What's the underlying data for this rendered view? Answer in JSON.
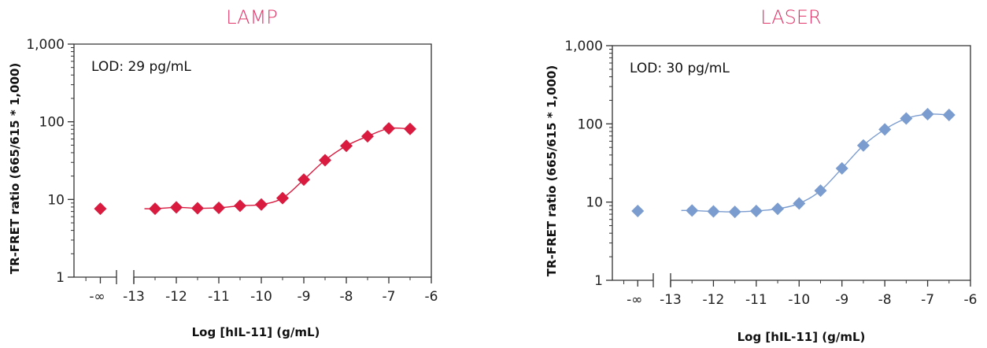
{
  "chart_data": [
    {
      "type": "scatter",
      "title": "LAMP",
      "title_color": "#e0366a",
      "xlabel": "Log [hIL-11] (g/mL)",
      "ylabel": "TR-FRET ratio (665/615 * 1,000)",
      "annotation": "LOD: 29 pg/mL",
      "y_scale": "log",
      "ylim": [
        1,
        1000
      ],
      "y_ticks": [
        1,
        10,
        100,
        1000
      ],
      "y_tick_labels": [
        "1",
        "10",
        "100",
        "1,000"
      ],
      "xlim": [
        -13,
        -6
      ],
      "x_ticks": [
        -13,
        -12,
        -11,
        -10,
        -9,
        -8,
        -7,
        -6
      ],
      "x_tick_labels": [
        "-13",
        "-12",
        "-11",
        "-10",
        "-9",
        "-8",
        "-7",
        "-6"
      ],
      "x_break_label": "-∞",
      "marker_color": "#d81b3f",
      "zero_point": 7.6,
      "x": [
        -12.5,
        -12,
        -11.5,
        -11,
        -10.5,
        -10,
        -9.5,
        -9,
        -8.5,
        -8,
        -7.5,
        -7,
        -6.5
      ],
      "y": [
        7.6,
        7.9,
        7.7,
        7.8,
        8.3,
        8.6,
        10.4,
        18,
        32,
        49,
        65,
        82,
        81
      ]
    },
    {
      "type": "scatter",
      "title": "LASER",
      "title_color": "#e0366a",
      "xlabel": "Log [hIL-11] (g/mL)",
      "ylabel": "TR-FRET ratio (665/615 * 1,000)",
      "annotation": "LOD: 30 pg/mL",
      "y_scale": "log",
      "ylim": [
        1,
        1000
      ],
      "y_ticks": [
        1,
        10,
        100,
        1000
      ],
      "y_tick_labels": [
        "1",
        "10",
        "100",
        "1,000"
      ],
      "xlim": [
        -13,
        -6
      ],
      "x_ticks": [
        -13,
        -12,
        -11,
        -10,
        -9,
        -8,
        -7,
        -6
      ],
      "x_tick_labels": [
        "-13",
        "-12",
        "-11",
        "-10",
        "-9",
        "-8",
        "-7",
        "-6"
      ],
      "x_break_label": "-∞",
      "marker_color": "#7b9ccf",
      "zero_point": 7.7,
      "x": [
        -12.5,
        -12,
        -11.5,
        -11,
        -10.5,
        -10,
        -9.5,
        -9,
        -8.5,
        -8,
        -7.5,
        -7,
        -6.5
      ],
      "y": [
        7.8,
        7.6,
        7.5,
        7.7,
        8.2,
        9.6,
        14,
        27,
        53,
        85,
        117,
        133,
        130
      ]
    }
  ]
}
